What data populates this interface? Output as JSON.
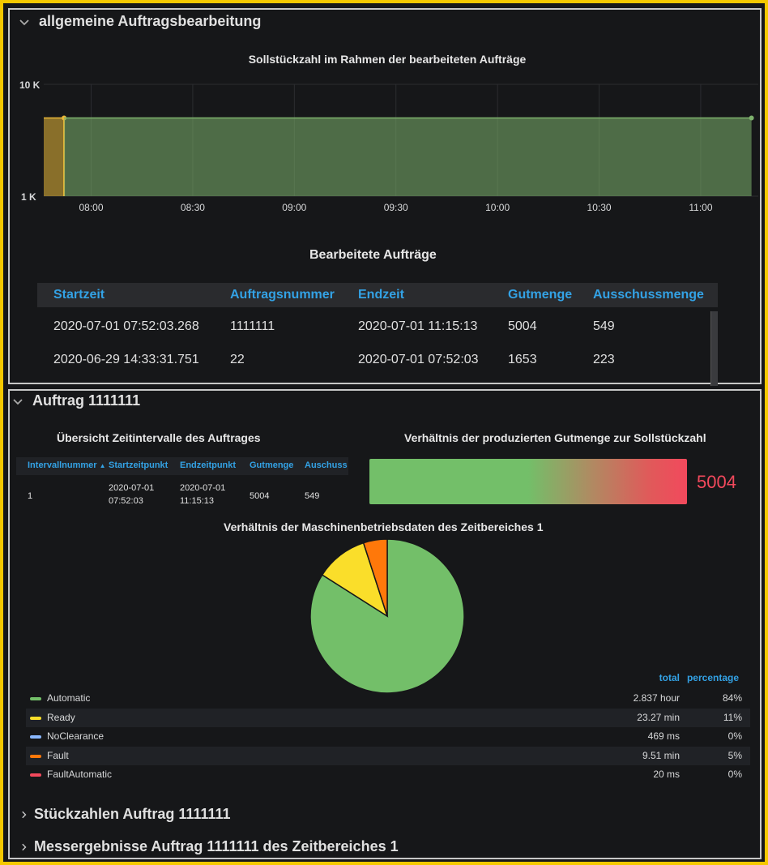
{
  "row1": {
    "title": "allgemeine Auftragsbearbeitung",
    "chart_title": "Sollstückzahl im Rahmen der bearbeiteten Aufträge",
    "table_title": "Bearbeitete Aufträge",
    "table": {
      "columns": [
        "Startzeit",
        "Auftragsnummer",
        "Endzeit",
        "Gutmenge",
        "Ausschussmenge"
      ],
      "rows": [
        [
          "2020-07-01 07:52:03.268",
          "1111111",
          "2020-07-01 11:15:13",
          "5004",
          "549"
        ],
        [
          "2020-06-29 14:33:31.751",
          "22",
          "2020-07-01 07:52:03",
          "1653",
          "223"
        ]
      ]
    }
  },
  "chart_data": {
    "type": "area",
    "title": "Sollstückzahl im Rahmen der bearbeiteten Aufträge",
    "y_scale": "log",
    "y_ticks": [
      "10 K",
      "1 K"
    ],
    "ylim": [
      1000,
      10000
    ],
    "x_ticks": [
      "08:00",
      "08:30",
      "09:00",
      "09:30",
      "10:00",
      "10:30",
      "11:00"
    ],
    "xlim": [
      "07:46",
      "11:17"
    ],
    "series": [
      {
        "color": "#eab839",
        "x": [
          "07:46",
          "07:52"
        ],
        "y": [
          5004,
          5004
        ]
      },
      {
        "color": "#7eb26d",
        "x": [
          "07:52",
          "11:15"
        ],
        "y": [
          5004,
          5004
        ]
      }
    ]
  },
  "row2": {
    "title": "Auftrag 1111111",
    "intervals_title": "Übersicht Zeitintervalle des Auftrages",
    "intervals": {
      "columns": [
        "Intervallnummer",
        "Startzeitpunkt",
        "Endzeitpunkt",
        "Gutmenge",
        "Auschuss"
      ],
      "sort_indicator": "▲",
      "rows": [
        [
          "1",
          "2020-07-01",
          "07:52:03",
          "2020-07-01",
          "11:15:13",
          "5004",
          "549"
        ]
      ]
    },
    "gauge_title": "Verhältnis der produzierten Gutmenge zur Sollstückzahl",
    "gauge_value": "5004",
    "gauge_fraction": 1.0,
    "pie_title": "Verhältnis der Maschinenbetriebsdaten des Zeitbereiches 1",
    "pie": {
      "slices": [
        {
          "name": "Automatic",
          "percent": 84,
          "color": "#73bf69"
        },
        {
          "name": "Ready",
          "percent": 11,
          "color": "#fade2a"
        },
        {
          "name": "Fault",
          "percent": 5,
          "color": "#ff780a"
        }
      ]
    },
    "legend": {
      "col_total": "total",
      "col_percentage": "percentage",
      "items": [
        {
          "name": "Automatic",
          "total": "2.837 hour",
          "percentage": "84%",
          "color": "#73bf69"
        },
        {
          "name": "Ready",
          "total": "23.27 min",
          "percentage": "11%",
          "color": "#fade2a"
        },
        {
          "name": "NoClearance",
          "total": "469 ms",
          "percentage": "0%",
          "color": "#8ab8ff"
        },
        {
          "name": "Fault",
          "total": "9.51 min",
          "percentage": "5%",
          "color": "#ff780a"
        },
        {
          "name": "FaultAutomatic",
          "total": "20 ms",
          "percentage": "0%",
          "color": "#f2495c"
        }
      ]
    }
  },
  "collapsed_rows": [
    {
      "title": "Stückzahlen Auftrag 1111111"
    },
    {
      "title": "Messergebnisse Auftrag 1111111 des Zeitbereiches 1"
    }
  ],
  "colors": {
    "background": "#161719",
    "frame": "#f5c800",
    "accent_blue": "#33a2e5",
    "gauge_value": "#f2495c"
  }
}
